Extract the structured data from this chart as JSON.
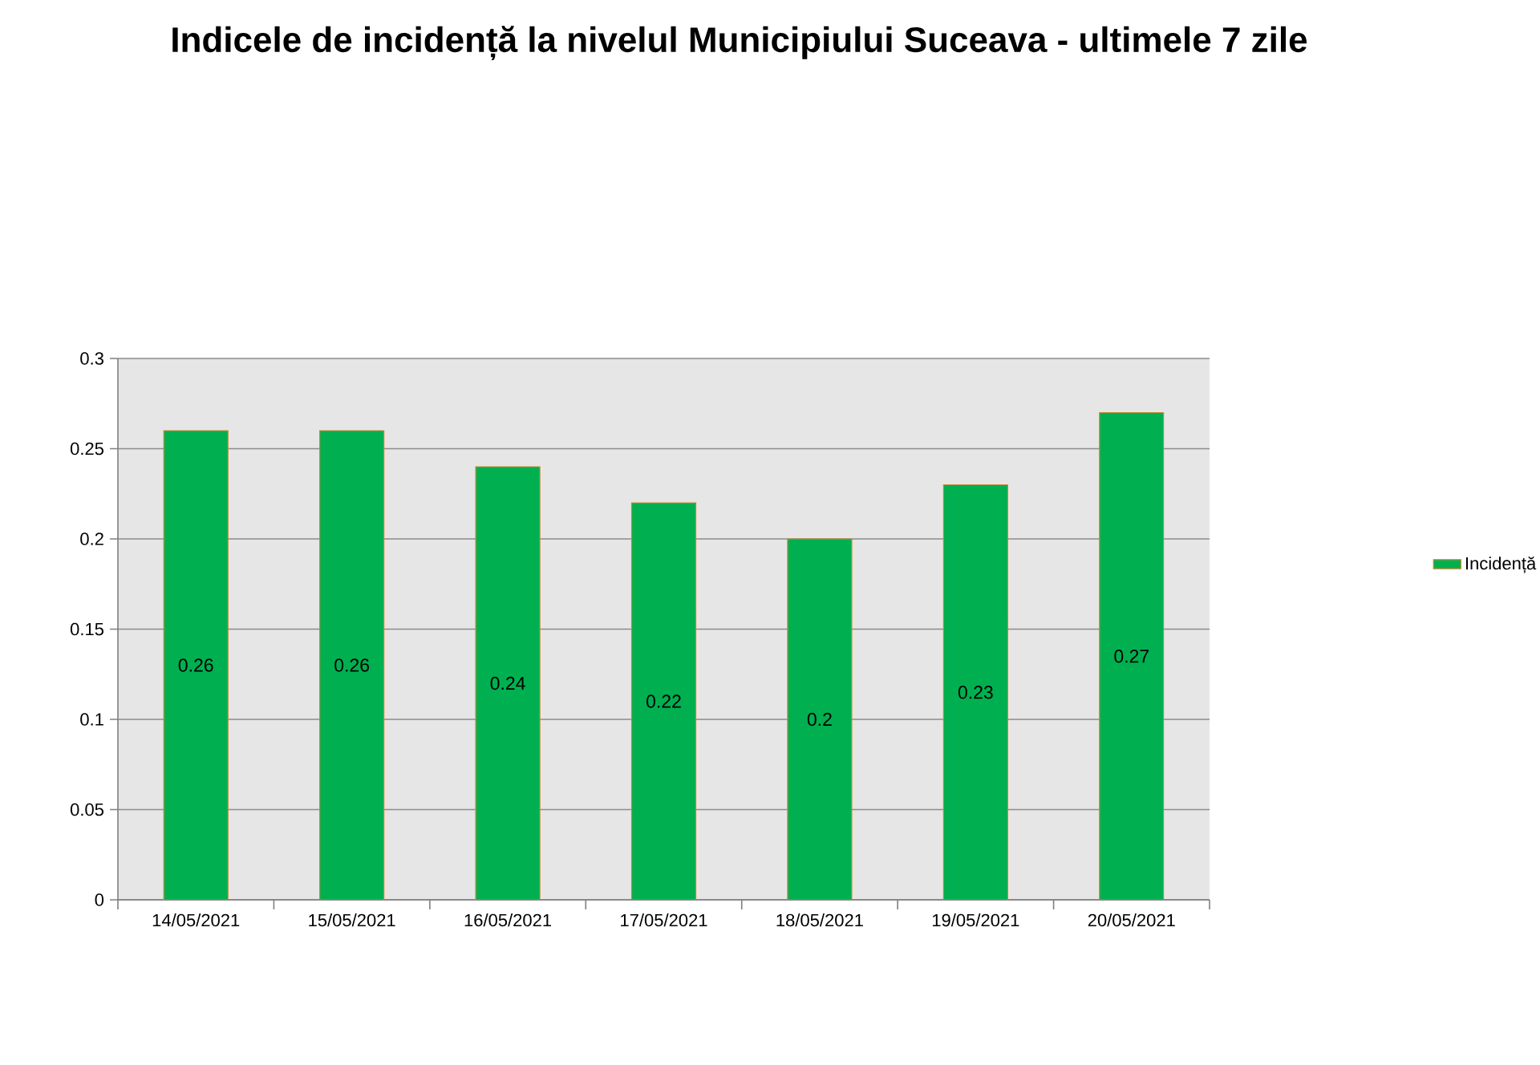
{
  "chart_data": {
    "type": "bar",
    "title": "Indicele de incidență la nivelul Municipiului Suceava - ultimele 7 zile",
    "categories": [
      "14/05/2021",
      "15/05/2021",
      "16/05/2021",
      "17/05/2021",
      "18/05/2021",
      "19/05/2021",
      "20/05/2021"
    ],
    "series": [
      {
        "name": "Incidență",
        "color": "#00b050",
        "values": [
          0.26,
          0.26,
          0.24,
          0.22,
          0.2,
          0.23,
          0.27
        ]
      }
    ],
    "ylim": [
      0,
      0.3
    ],
    "yticks": [
      0,
      0.05,
      0.1,
      0.15,
      0.2,
      0.25,
      0.3
    ],
    "grid": "y",
    "legend": "right",
    "data_labels": true
  }
}
